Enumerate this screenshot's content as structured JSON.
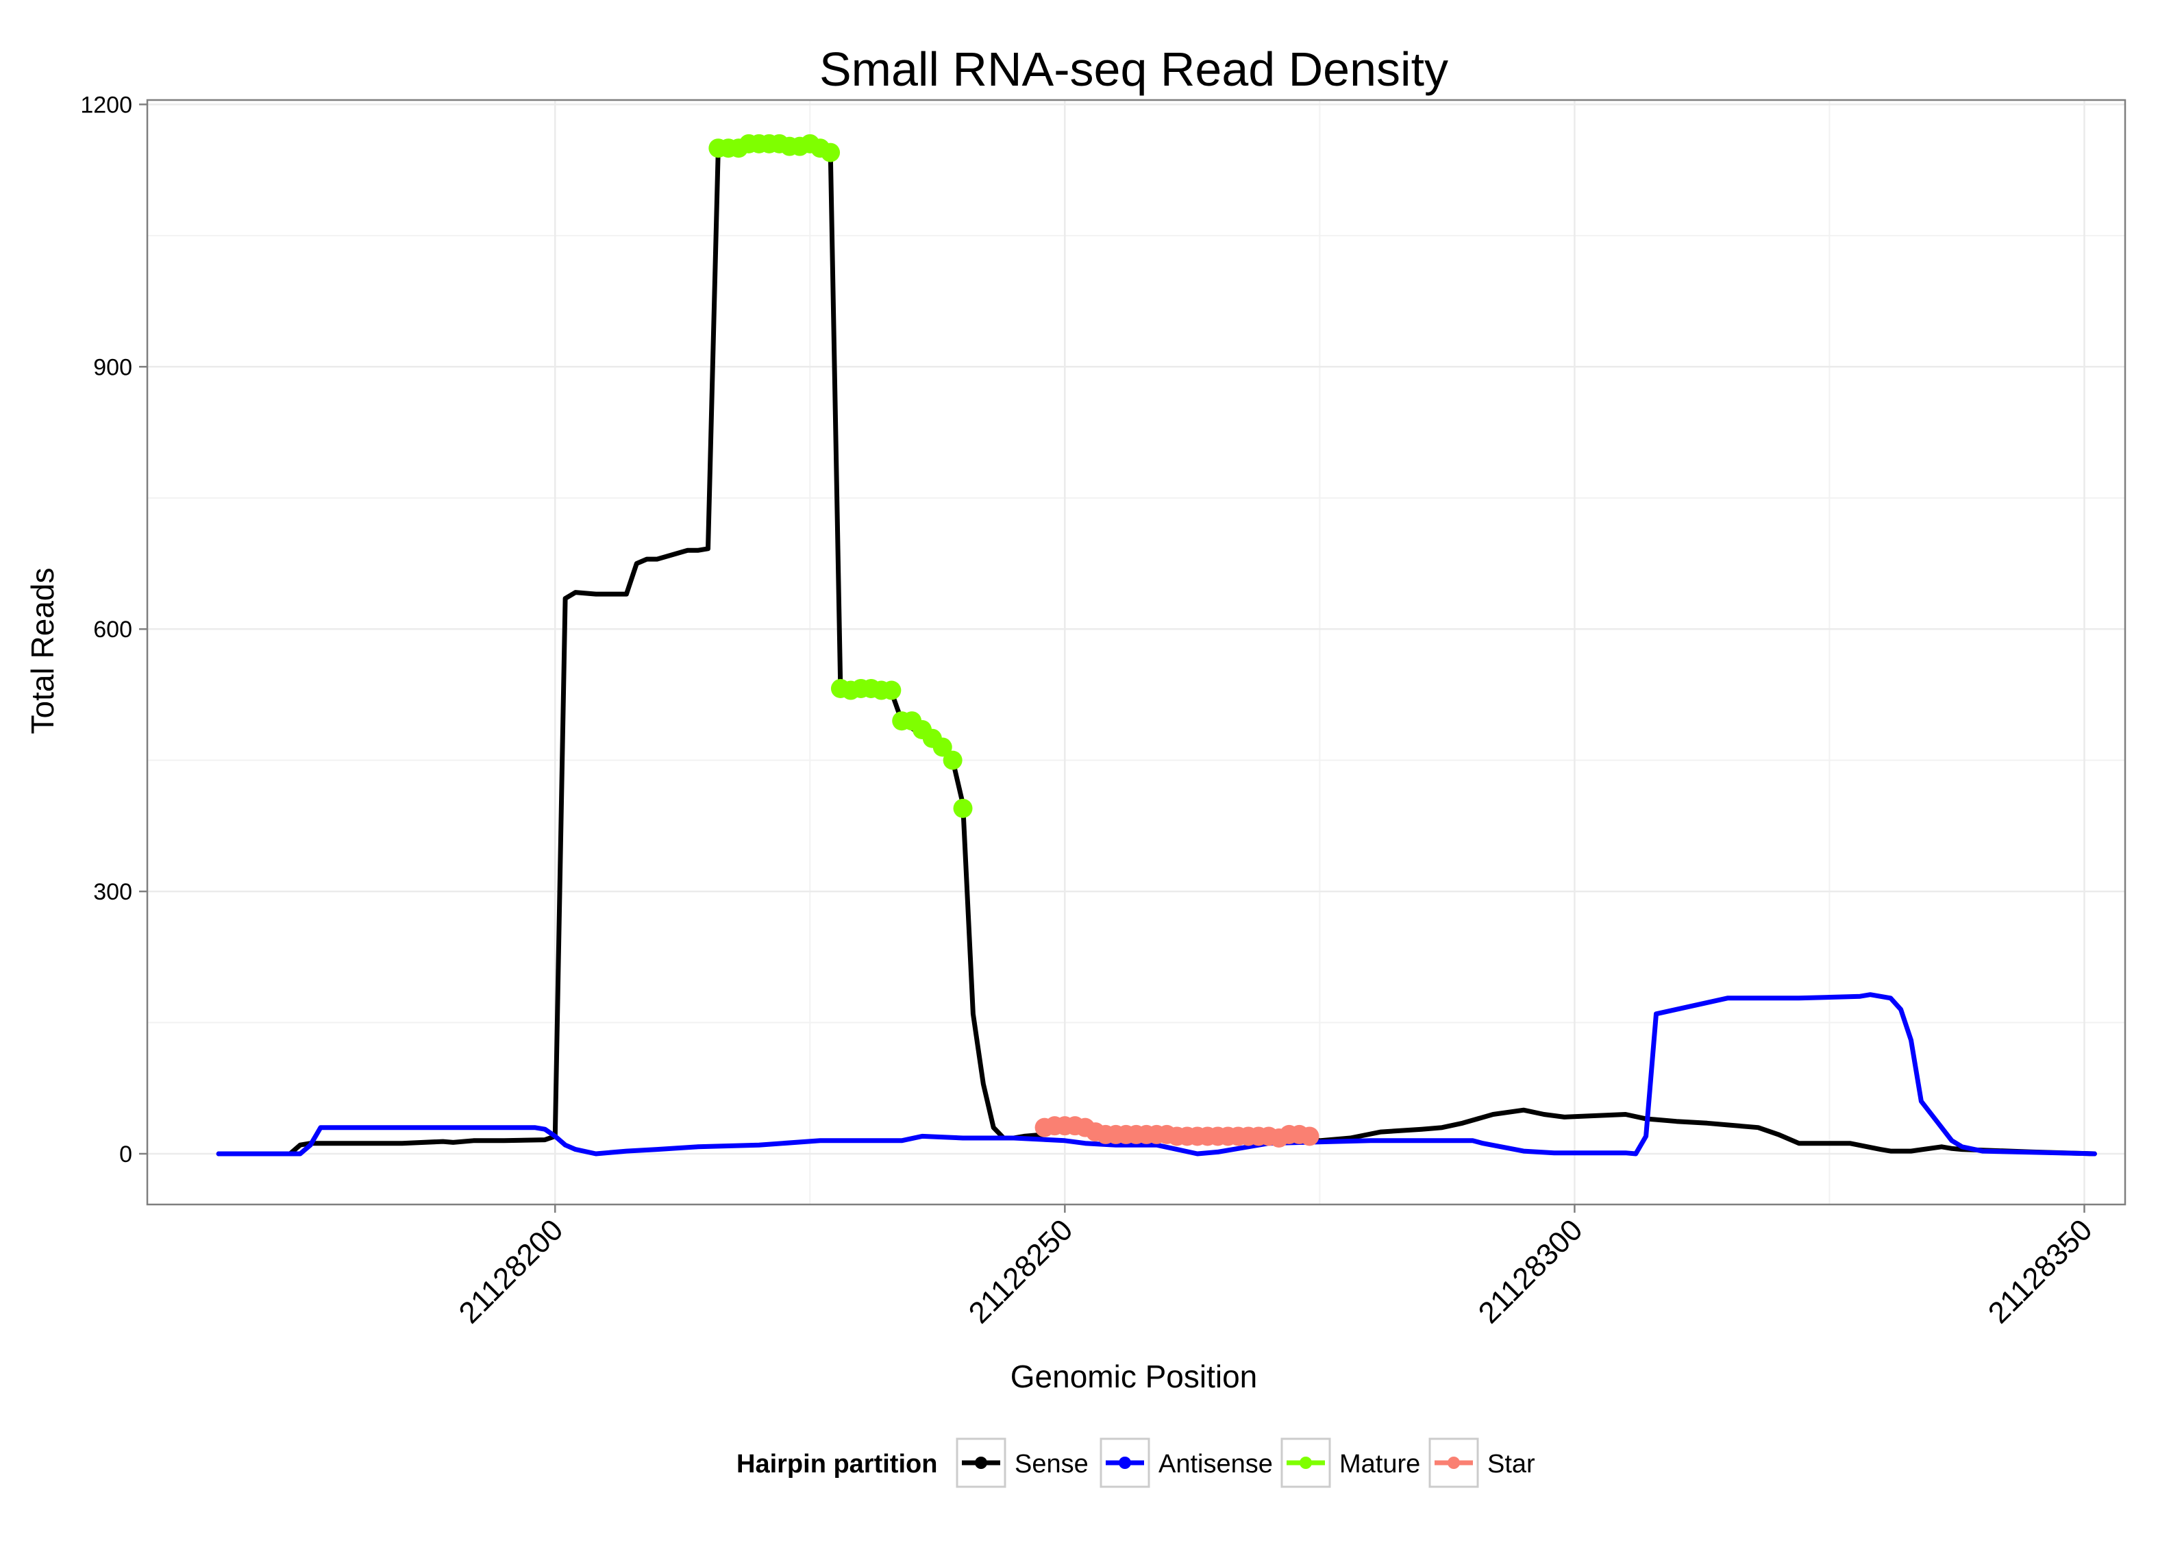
{
  "chart_data": {
    "type": "line",
    "title": "Small RNA-seq Read Density",
    "xlabel": "Genomic Position",
    "ylabel": "Total Reads",
    "xlim": [
      21128160,
      21128354
    ],
    "ylim": [
      -58,
      1205
    ],
    "x_ticks": [
      21128200,
      21128250,
      21128300,
      21128350
    ],
    "x_tick_labels": [
      "21128200",
      "21128250",
      "21128300",
      "21128350"
    ],
    "y_ticks": [
      0,
      300,
      600,
      900,
      1200
    ],
    "y_tick_labels": [
      "0",
      "300",
      "600",
      "900",
      "1200"
    ],
    "grid": true,
    "legend": {
      "title": "Hairpin partition",
      "position": "bottom",
      "items": [
        {
          "label": "Sense",
          "color": "#000000"
        },
        {
          "label": "Antisense",
          "color": "#0000ff"
        },
        {
          "label": "Mature",
          "color": "#7fff00"
        },
        {
          "label": "Star",
          "color": "#fa8072"
        }
      ]
    },
    "series": [
      {
        "name": "Sense",
        "color": "#000000",
        "marker": "line",
        "x": [
          21128167,
          21128174,
          21128175,
          21128176,
          21128180,
          21128185,
          21128189,
          21128190,
          21128192,
          21128195,
          21128199,
          21128200,
          21128201,
          21128202,
          21128204,
          21128207,
          21128208,
          21128209,
          21128210,
          21128213,
          21128214,
          21128215,
          21128216,
          21128217,
          21128227,
          21128228,
          21128233,
          21128234,
          21128237,
          21128239,
          21128240,
          21128241,
          21128242,
          21128243,
          21128244,
          21128245,
          21128246,
          21128248,
          21128249,
          21128252,
          21128260,
          21128275,
          21128278,
          21128281,
          21128285,
          21128287,
          21128289,
          21128292,
          21128295,
          21128297,
          21128299,
          21128305,
          21128307,
          21128310,
          21128313,
          21128315,
          21128318,
          21128320,
          21128322,
          21128327,
          21128330,
          21128331,
          21128333,
          21128336,
          21128337,
          21128338,
          21128345,
          21128351
        ],
        "y": [
          0,
          0,
          10,
          12,
          12,
          12,
          14,
          13,
          15,
          15,
          16,
          20,
          635,
          642,
          640,
          640,
          675,
          680,
          680,
          690,
          690,
          692,
          1150,
          1155,
          1150,
          530,
          528,
          495,
          470,
          450,
          400,
          160,
          80,
          30,
          18,
          18,
          20,
          22,
          30,
          25,
          22,
          15,
          18,
          25,
          28,
          30,
          35,
          45,
          50,
          45,
          42,
          45,
          40,
          37,
          35,
          33,
          30,
          22,
          12,
          12,
          5,
          3,
          3,
          8,
          6,
          5,
          2,
          0
        ]
      },
      {
        "name": "Antisense",
        "color": "#0000ff",
        "marker": "line",
        "x": [
          21128167,
          21128175,
          21128176,
          21128177,
          21128190,
          21128198,
          21128199,
          21128200,
          21128201,
          21128202,
          21128204,
          21128207,
          21128210,
          21128214,
          21128220,
          21128226,
          21128234,
          21128236,
          21128240,
          21128245,
          21128250,
          21128252,
          21128255,
          21128259,
          21128261,
          21128263,
          21128265,
          21128268,
          21128270,
          21128280,
          21128290,
          21128291,
          21128295,
          21128298,
          21128305,
          21128306,
          21128307,
          21128308,
          21128315,
          21128322,
          21128328,
          21128329,
          21128331,
          21128332,
          21128333,
          21128334,
          21128335,
          21128337,
          21128338,
          21128340,
          21128351
        ],
        "y": [
          0,
          0,
          10,
          30,
          30,
          30,
          28,
          20,
          10,
          5,
          0,
          3,
          5,
          8,
          10,
          15,
          15,
          20,
          18,
          18,
          15,
          12,
          10,
          10,
          5,
          0,
          2,
          8,
          12,
          15,
          15,
          12,
          3,
          1,
          1,
          0,
          20,
          160,
          178,
          178,
          180,
          182,
          178,
          165,
          130,
          60,
          45,
          15,
          8,
          3,
          0
        ]
      },
      {
        "name": "Mature",
        "color": "#7fff00",
        "marker": "point",
        "x": [
          21128216,
          21128217,
          21128218,
          21128219,
          21128220,
          21128221,
          21128222,
          21128223,
          21128224,
          21128225,
          21128226,
          21128227,
          21128228,
          21128229,
          21128230,
          21128231,
          21128232,
          21128233,
          21128234,
          21128235,
          21128236,
          21128237,
          21128238,
          21128239,
          21128240
        ],
        "y": [
          1150,
          1150,
          1150,
          1155,
          1155,
          1155,
          1155,
          1152,
          1152,
          1155,
          1150,
          1145,
          532,
          530,
          532,
          532,
          530,
          530,
          495,
          495,
          485,
          475,
          465,
          450,
          395
        ]
      },
      {
        "name": "Star",
        "color": "#fa8072",
        "marker": "point",
        "x": [
          21128248,
          21128249,
          21128250,
          21128251,
          21128252,
          21128253,
          21128254,
          21128255,
          21128256,
          21128257,
          21128258,
          21128259,
          21128260,
          21128261,
          21128262,
          21128263,
          21128264,
          21128265,
          21128266,
          21128267,
          21128268,
          21128269,
          21128270,
          21128271,
          21128272,
          21128273,
          21128274
        ],
        "y": [
          30,
          32,
          32,
          32,
          30,
          25,
          22,
          22,
          22,
          22,
          22,
          22,
          22,
          20,
          20,
          20,
          20,
          20,
          20,
          20,
          20,
          20,
          20,
          18,
          22,
          22,
          20
        ]
      }
    ]
  }
}
